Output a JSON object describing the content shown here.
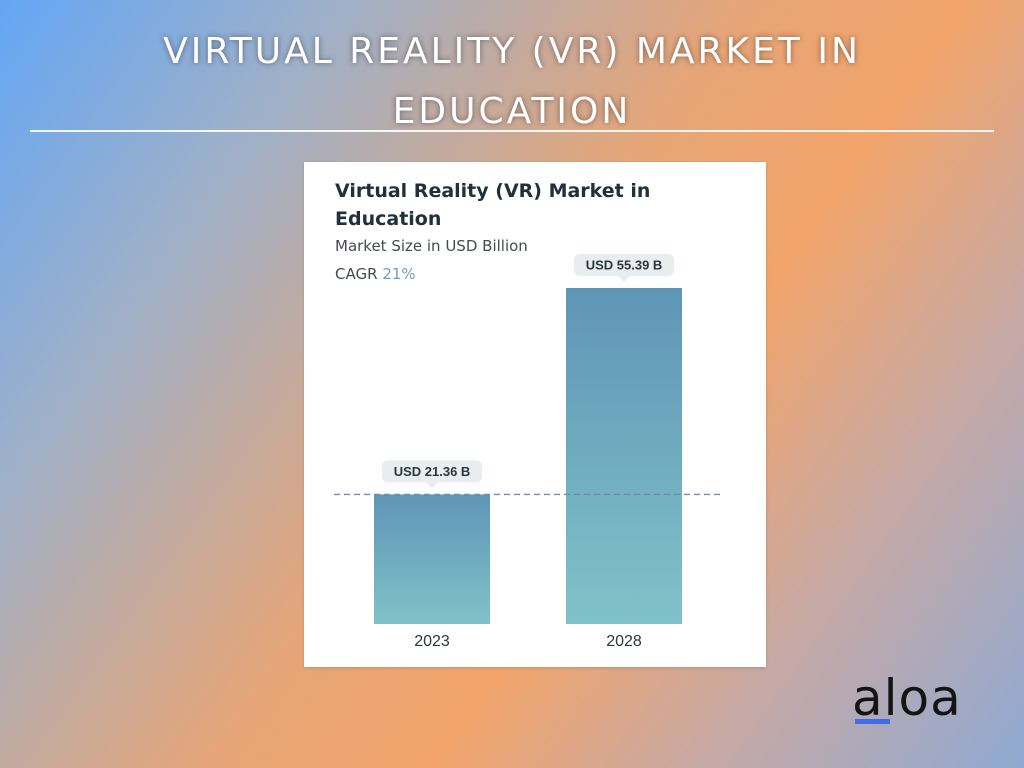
{
  "page": {
    "title": "VIRTUAL REALITY (VR) MARKET IN EDUCATION",
    "logo_text": "aloa",
    "colors": {
      "logo_underline": "#3d6ee8",
      "bar_top": "#5f95b6",
      "bar_bottom": "#80c2c9",
      "reference_line": "#6d8fa8"
    }
  },
  "chart_data": {
    "type": "bar",
    "title": "Virtual Reality (VR) Market in Education",
    "subtitle": "Market Size in USD Billion",
    "cagr_label": "CAGR",
    "cagr_value": "21%",
    "categories": [
      "2023",
      "2028"
    ],
    "values": [
      21.36,
      55.39
    ],
    "data_labels": [
      "USD 21.36 B",
      "USD 55.39 B"
    ],
    "ylim": [
      0,
      60
    ],
    "grid": false,
    "legend": "none",
    "reference_line": {
      "value": 21.36,
      "style": "dashed"
    }
  }
}
